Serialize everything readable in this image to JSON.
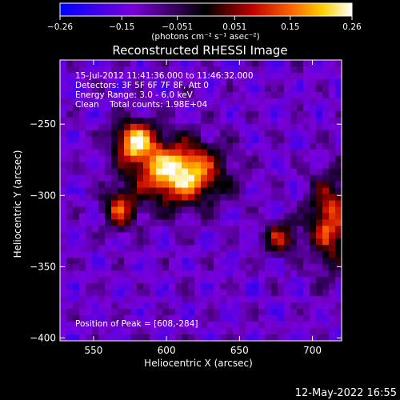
{
  "chart_data": {
    "type": "heatmap",
    "title": "Reconstructed RHESSI Image",
    "xlabel": "Heliocentric X (arcsec)",
    "ylabel": "Heliocentric Y (arcsec)",
    "xlim": [
      527,
      720
    ],
    "ylim": [
      -402,
      -205
    ],
    "x_ticks": [
      550,
      600,
      650,
      700
    ],
    "y_ticks": [
      -250,
      -300,
      -350,
      -400
    ],
    "x_tick_labels": [
      "550",
      "600",
      "650",
      "700"
    ],
    "y_tick_labels": [
      "−250",
      "−300",
      "−350",
      "−400"
    ],
    "colorbar": {
      "range": [
        -0.26,
        0.26
      ],
      "ticks": [
        -0.26,
        -0.15,
        -0.051,
        0.051,
        0.15,
        0.26
      ],
      "tick_labels": [
        "−0.26",
        "−0.15",
        "−0.051",
        "0.051",
        "0.15",
        "0.26"
      ],
      "units_label": "(photons cm⁻² s⁻¹ asec⁻²)",
      "colors": [
        "#0000ff",
        "#7a00d8",
        "#000000",
        "#c00000",
        "#ff6a00",
        "#ffd000",
        "#ffffff"
      ]
    },
    "annotations": {
      "time_range": "15-Jul-2012 11:41:36.000 to 11:46:32.000",
      "detectors": "Detectors: 3F 5F 6F 7F 8F, Att 0",
      "energy_range": "Energy Range: 3.0 - 6.0 keV",
      "clean_counts": "Clean    Total counts: 1.98E+04",
      "peak_position": "Position of Peak = [608,-284]"
    },
    "sources": [
      {
        "x": 608,
        "y": -284,
        "peak": 0.26,
        "sx": 20,
        "sy": 15
      },
      {
        "x": 578,
        "y": -262,
        "peak": 0.2,
        "sx": 10,
        "sy": 10
      },
      {
        "x": 568,
        "y": -310,
        "peak": 0.1,
        "sx": 8,
        "sy": 10
      },
      {
        "x": 712,
        "y": -318,
        "peak": 0.12,
        "sx": 10,
        "sy": 22
      },
      {
        "x": 678,
        "y": -330,
        "peak": 0.07,
        "sx": 8,
        "sy": 8
      }
    ],
    "date_stamp": "12-May-2022 16:55"
  }
}
